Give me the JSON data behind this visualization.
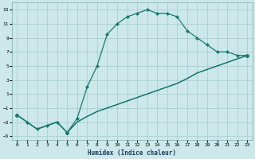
{
  "xlabel": "Humidex (Indice chaleur)",
  "bg_color": "#cce8ea",
  "grid_color": "#aacfd2",
  "line_color": "#1a7a6e",
  "xlim": [
    -0.5,
    23.5
  ],
  "ylim": [
    -5.5,
    14
  ],
  "xticks": [
    0,
    1,
    2,
    3,
    4,
    5,
    6,
    7,
    8,
    9,
    10,
    11,
    12,
    13,
    14,
    15,
    16,
    17,
    18,
    19,
    20,
    21,
    22,
    23
  ],
  "yticks": [
    -5,
    -3,
    -1,
    1,
    3,
    5,
    7,
    9,
    11,
    13
  ],
  "curve1_x": [
    0,
    1,
    2,
    3,
    4,
    5,
    6,
    7,
    8,
    9,
    10,
    11,
    12,
    13,
    14,
    15,
    16,
    17,
    18,
    19,
    20,
    21,
    22,
    23
  ],
  "curve1_y": [
    -2,
    -3,
    -4,
    -3.5,
    -3,
    -4.5,
    -2.5,
    2,
    5,
    9.5,
    11,
    12,
    12.5,
    13,
    12.5,
    12.5,
    12,
    10,
    9,
    8,
    7,
    7,
    6.5,
    6.5
  ],
  "curve2_x": [
    0,
    1,
    2,
    3,
    4,
    5,
    6,
    7,
    8,
    9,
    10,
    11,
    12,
    13,
    14,
    15,
    16,
    17,
    18,
    19,
    20,
    21,
    22,
    23
  ],
  "curve2_y": [
    -2,
    -3,
    -4,
    -3.5,
    -3,
    -4.5,
    -3.0,
    -2.2,
    -1.5,
    -1.0,
    -0.5,
    0.0,
    0.5,
    1.0,
    1.5,
    2.0,
    2.5,
    3.2,
    4.0,
    4.5,
    5.0,
    5.5,
    6.0,
    6.5
  ],
  "curve3_x": [
    0,
    1,
    2,
    3,
    4,
    5,
    6,
    7,
    8,
    9,
    10,
    11,
    12,
    13,
    14,
    15,
    16,
    17,
    18,
    19,
    20,
    21,
    22,
    23
  ],
  "curve3_y": [
    -2,
    -3,
    -4,
    -3.5,
    -3,
    -4.5,
    -3.0,
    -2.2,
    -1.5,
    -1.0,
    -0.5,
    0.0,
    0.5,
    1.0,
    1.5,
    2.0,
    2.5,
    3.2,
    4.0,
    4.5,
    5.0,
    5.5,
    6.0,
    6.5
  ]
}
